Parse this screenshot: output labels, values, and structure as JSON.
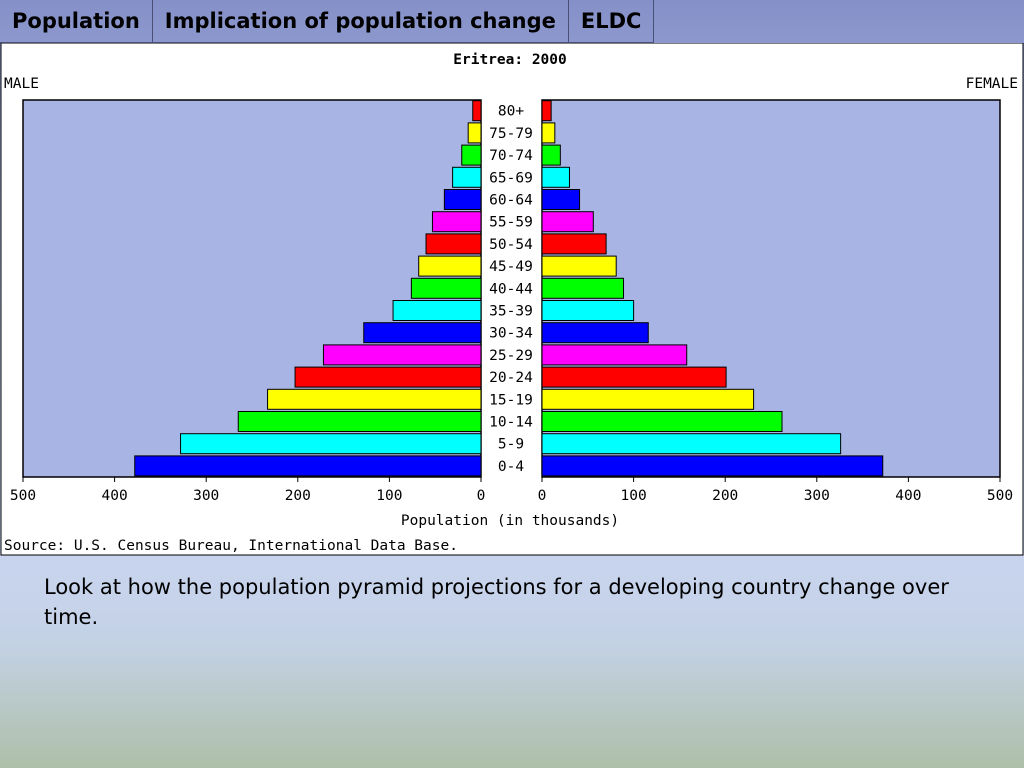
{
  "tabs": [
    {
      "label": "Population"
    },
    {
      "label": "Implication of population change"
    },
    {
      "label": "ELDC"
    }
  ],
  "caption": "Look at how the population pyramid projections for a developing country change over time.",
  "colors": {
    "frame_bg": "#ffffff",
    "plot_bg": "#a8b4e4",
    "cycle": [
      "#0000ff",
      "#00ffff",
      "#00ff00",
      "#ffff00",
      "#ff0000",
      "#ff00ff"
    ]
  },
  "chart_data": {
    "type": "bar",
    "title": "Eritrea: 2000",
    "left_label": "MALE",
    "right_label": "FEMALE",
    "xlabel": "Population (in thousands)",
    "source": "Source: U.S. Census Bureau, International Data Base.",
    "categories": [
      "0-4",
      "5-9",
      "10-14",
      "15-19",
      "20-24",
      "25-29",
      "30-34",
      "35-39",
      "40-44",
      "45-49",
      "50-54",
      "55-59",
      "60-64",
      "65-69",
      "70-74",
      "75-79",
      "80+"
    ],
    "series": [
      {
        "name": "MALE",
        "values": [
          378,
          328,
          265,
          233,
          203,
          172,
          128,
          96,
          76,
          68,
          60,
          53,
          40,
          31,
          21,
          14,
          9
        ]
      },
      {
        "name": "FEMALE",
        "values": [
          372,
          326,
          262,
          231,
          201,
          158,
          116,
          100,
          89,
          81,
          70,
          56,
          41,
          30,
          20,
          14,
          10
        ]
      }
    ],
    "xticks_left": [
      "500",
      "400",
      "300",
      "200",
      "100",
      "0"
    ],
    "xticks_right": [
      "0",
      "100",
      "200",
      "300",
      "400",
      "500"
    ],
    "xlim": [
      0,
      500
    ],
    "grid": false
  }
}
